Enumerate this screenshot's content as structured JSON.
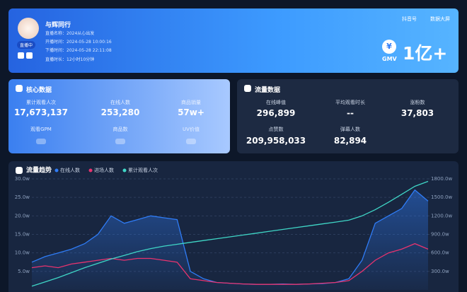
{
  "header": {
    "name": "与辉同行",
    "badge": "直播中",
    "info": [
      "直播名称：2024从心出发",
      "开播时间：2024-05-28 10:00:16",
      "下播时间：2024-05-28 22:11:08",
      "直播时长：12小时10分钟"
    ],
    "links": [
      "抖音号",
      "数据大屏"
    ],
    "gmv_symbol": "¥",
    "gmv_label": "GMV",
    "gmv_value": "1亿+"
  },
  "core": {
    "title": "核心数据",
    "metrics": [
      {
        "label": "累计观看人次",
        "value": "17,673,137"
      },
      {
        "label": "在线人数",
        "value": "253,280"
      },
      {
        "label": "商品销量",
        "value": "57w+"
      },
      {
        "label": "观看GPM"
      },
      {
        "label": "商品数"
      },
      {
        "label": "UV价值"
      }
    ]
  },
  "traffic": {
    "title": "流量数据",
    "metrics": [
      {
        "label": "在线峰值",
        "value": "296,899"
      },
      {
        "label": "平均观看时长",
        "value": "--"
      },
      {
        "label": "涨粉数",
        "value": "37,803"
      },
      {
        "label": "点赞数",
        "value": "209,958,033"
      },
      {
        "label": "弹幕人数",
        "value": "82,894"
      }
    ]
  },
  "chart_data": {
    "type": "line",
    "title": "流量趋势",
    "series": [
      {
        "name": "在线人数",
        "color": "#2f7cf6",
        "values": [
          7.5,
          9,
          10,
          11,
          12.5,
          15,
          20,
          18,
          19,
          20,
          19.5,
          19,
          5,
          3,
          2,
          1.8,
          1.6,
          1.5,
          1.5,
          1.6,
          1.5,
          1.6,
          1.7,
          2,
          3,
          8,
          18,
          20,
          22,
          27,
          24
        ]
      },
      {
        "name": "进场人数",
        "color": "#e8336e",
        "values": [
          6,
          6.5,
          6,
          7,
          7.5,
          8,
          8.5,
          8,
          8.5,
          8.5,
          8,
          7.5,
          3,
          2.5,
          2,
          1.8,
          1.6,
          1.5,
          1.5,
          1.5,
          1.5,
          1.6,
          1.8,
          2,
          2.5,
          5,
          8,
          10,
          11,
          12.5,
          11
        ]
      },
      {
        "name": "累计观看人次",
        "color": "#3fd6c6",
        "axis": "y2",
        "values": [
          60,
          130,
          200,
          280,
          360,
          430,
          500,
          560,
          620,
          670,
          710,
          740,
          770,
          800,
          830,
          860,
          890,
          920,
          950,
          980,
          1010,
          1040,
          1070,
          1100,
          1130,
          1200,
          1300,
          1420,
          1550,
          1680,
          1760
        ]
      }
    ],
    "ylim": [
      0,
      30
    ],
    "yticks": [
      {
        "value": 5,
        "label": "5.0w"
      },
      {
        "value": 10,
        "label": "10.0w"
      },
      {
        "value": 15,
        "label": "15.0w"
      },
      {
        "value": 20,
        "label": "20.0w"
      },
      {
        "value": 25,
        "label": "25.0w"
      },
      {
        "value": 30,
        "label": "30.0w"
      }
    ],
    "y2lim": [
      0,
      1800
    ],
    "y2ticks": [
      {
        "value": 300,
        "label": "300.0w"
      },
      {
        "value": 600,
        "label": "600.0w"
      },
      {
        "value": 900,
        "label": "900.0w"
      },
      {
        "value": 1200,
        "label": "1200.0w"
      },
      {
        "value": 1500,
        "label": "1500.0w"
      },
      {
        "value": 1800,
        "label": "1800.0w"
      }
    ],
    "grid": true
  }
}
